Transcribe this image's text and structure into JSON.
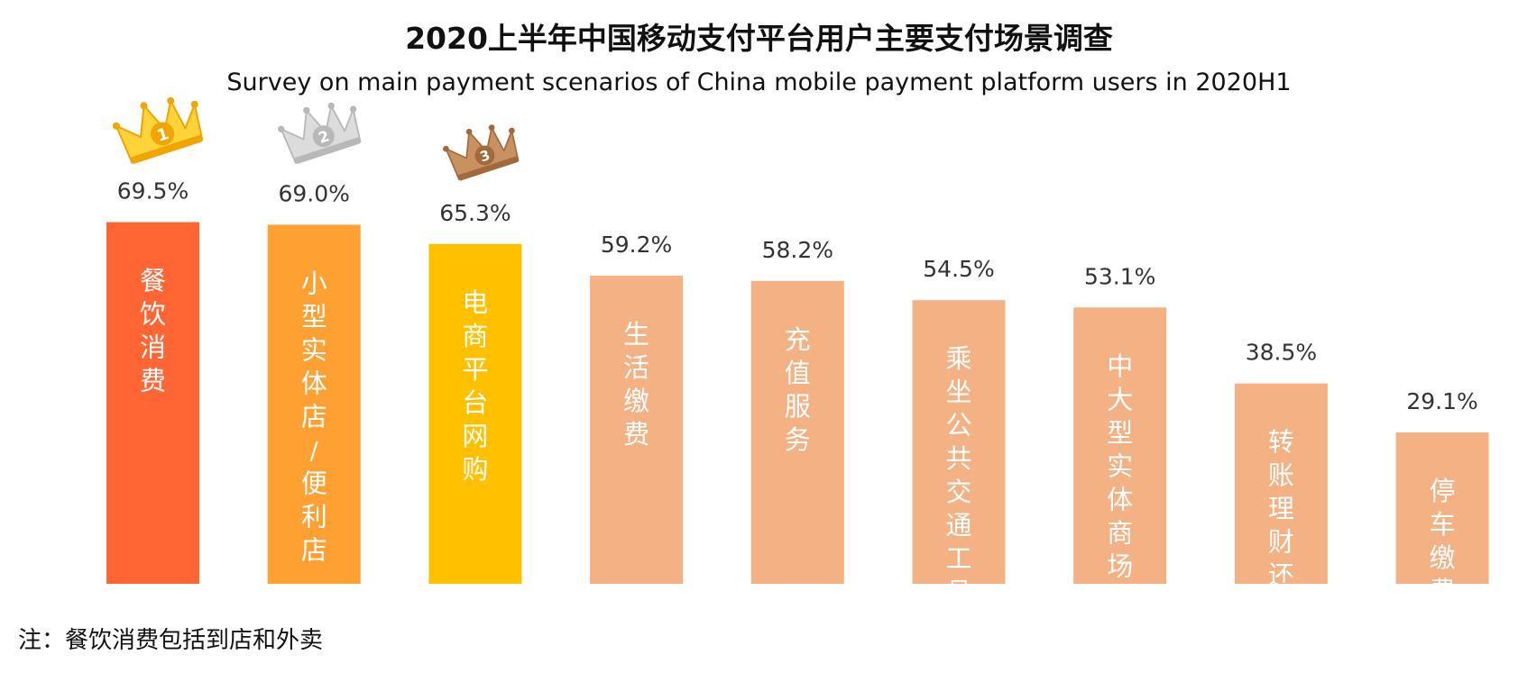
{
  "chart_data": {
    "type": "bar",
    "title": "2020上半年中国移动支付平台用户主要支付场景调查",
    "subtitle": "Survey on main payment scenarios of China mobile payment platform users in 2020H1",
    "categories": [
      "餐饮消费",
      "小型实体店/便利店",
      "电商平台网购",
      "生活缴费",
      "充值服务",
      "乘坐公共交通工具",
      "中大型实体商场",
      "转账理财还贷",
      "停车缴费"
    ],
    "values": [
      69.5,
      69.0,
      65.3,
      59.2,
      58.2,
      54.5,
      53.1,
      38.5,
      29.1
    ],
    "value_labels": [
      "69.5%",
      "69.0%",
      "65.3%",
      "59.2%",
      "58.2%",
      "54.5%",
      "53.1%",
      "38.5%",
      "29.1%"
    ],
    "unit": "%",
    "ylim": [
      0,
      100
    ],
    "grid": false,
    "legend": "none",
    "bar_colors": [
      "#FF6633",
      "#FFA033",
      "#FFC000",
      "#F4B183",
      "#F4B183",
      "#F4B183",
      "#F4B183",
      "#F4B183",
      "#F4B183"
    ],
    "rank_badges": [
      {
        "rank": "1",
        "color": "#FFD43B",
        "accent": "#F0A500",
        "icon": "gold-crown-icon"
      },
      {
        "rank": "2",
        "color": "#DCDCDC",
        "accent": "#B8B8B8",
        "icon": "silver-crown-icon"
      },
      {
        "rank": "3",
        "color": "#C99060",
        "accent": "#A06A3C",
        "icon": "bronze-crown-icon"
      }
    ],
    "note": "注：餐饮消费包括到店和外卖"
  }
}
